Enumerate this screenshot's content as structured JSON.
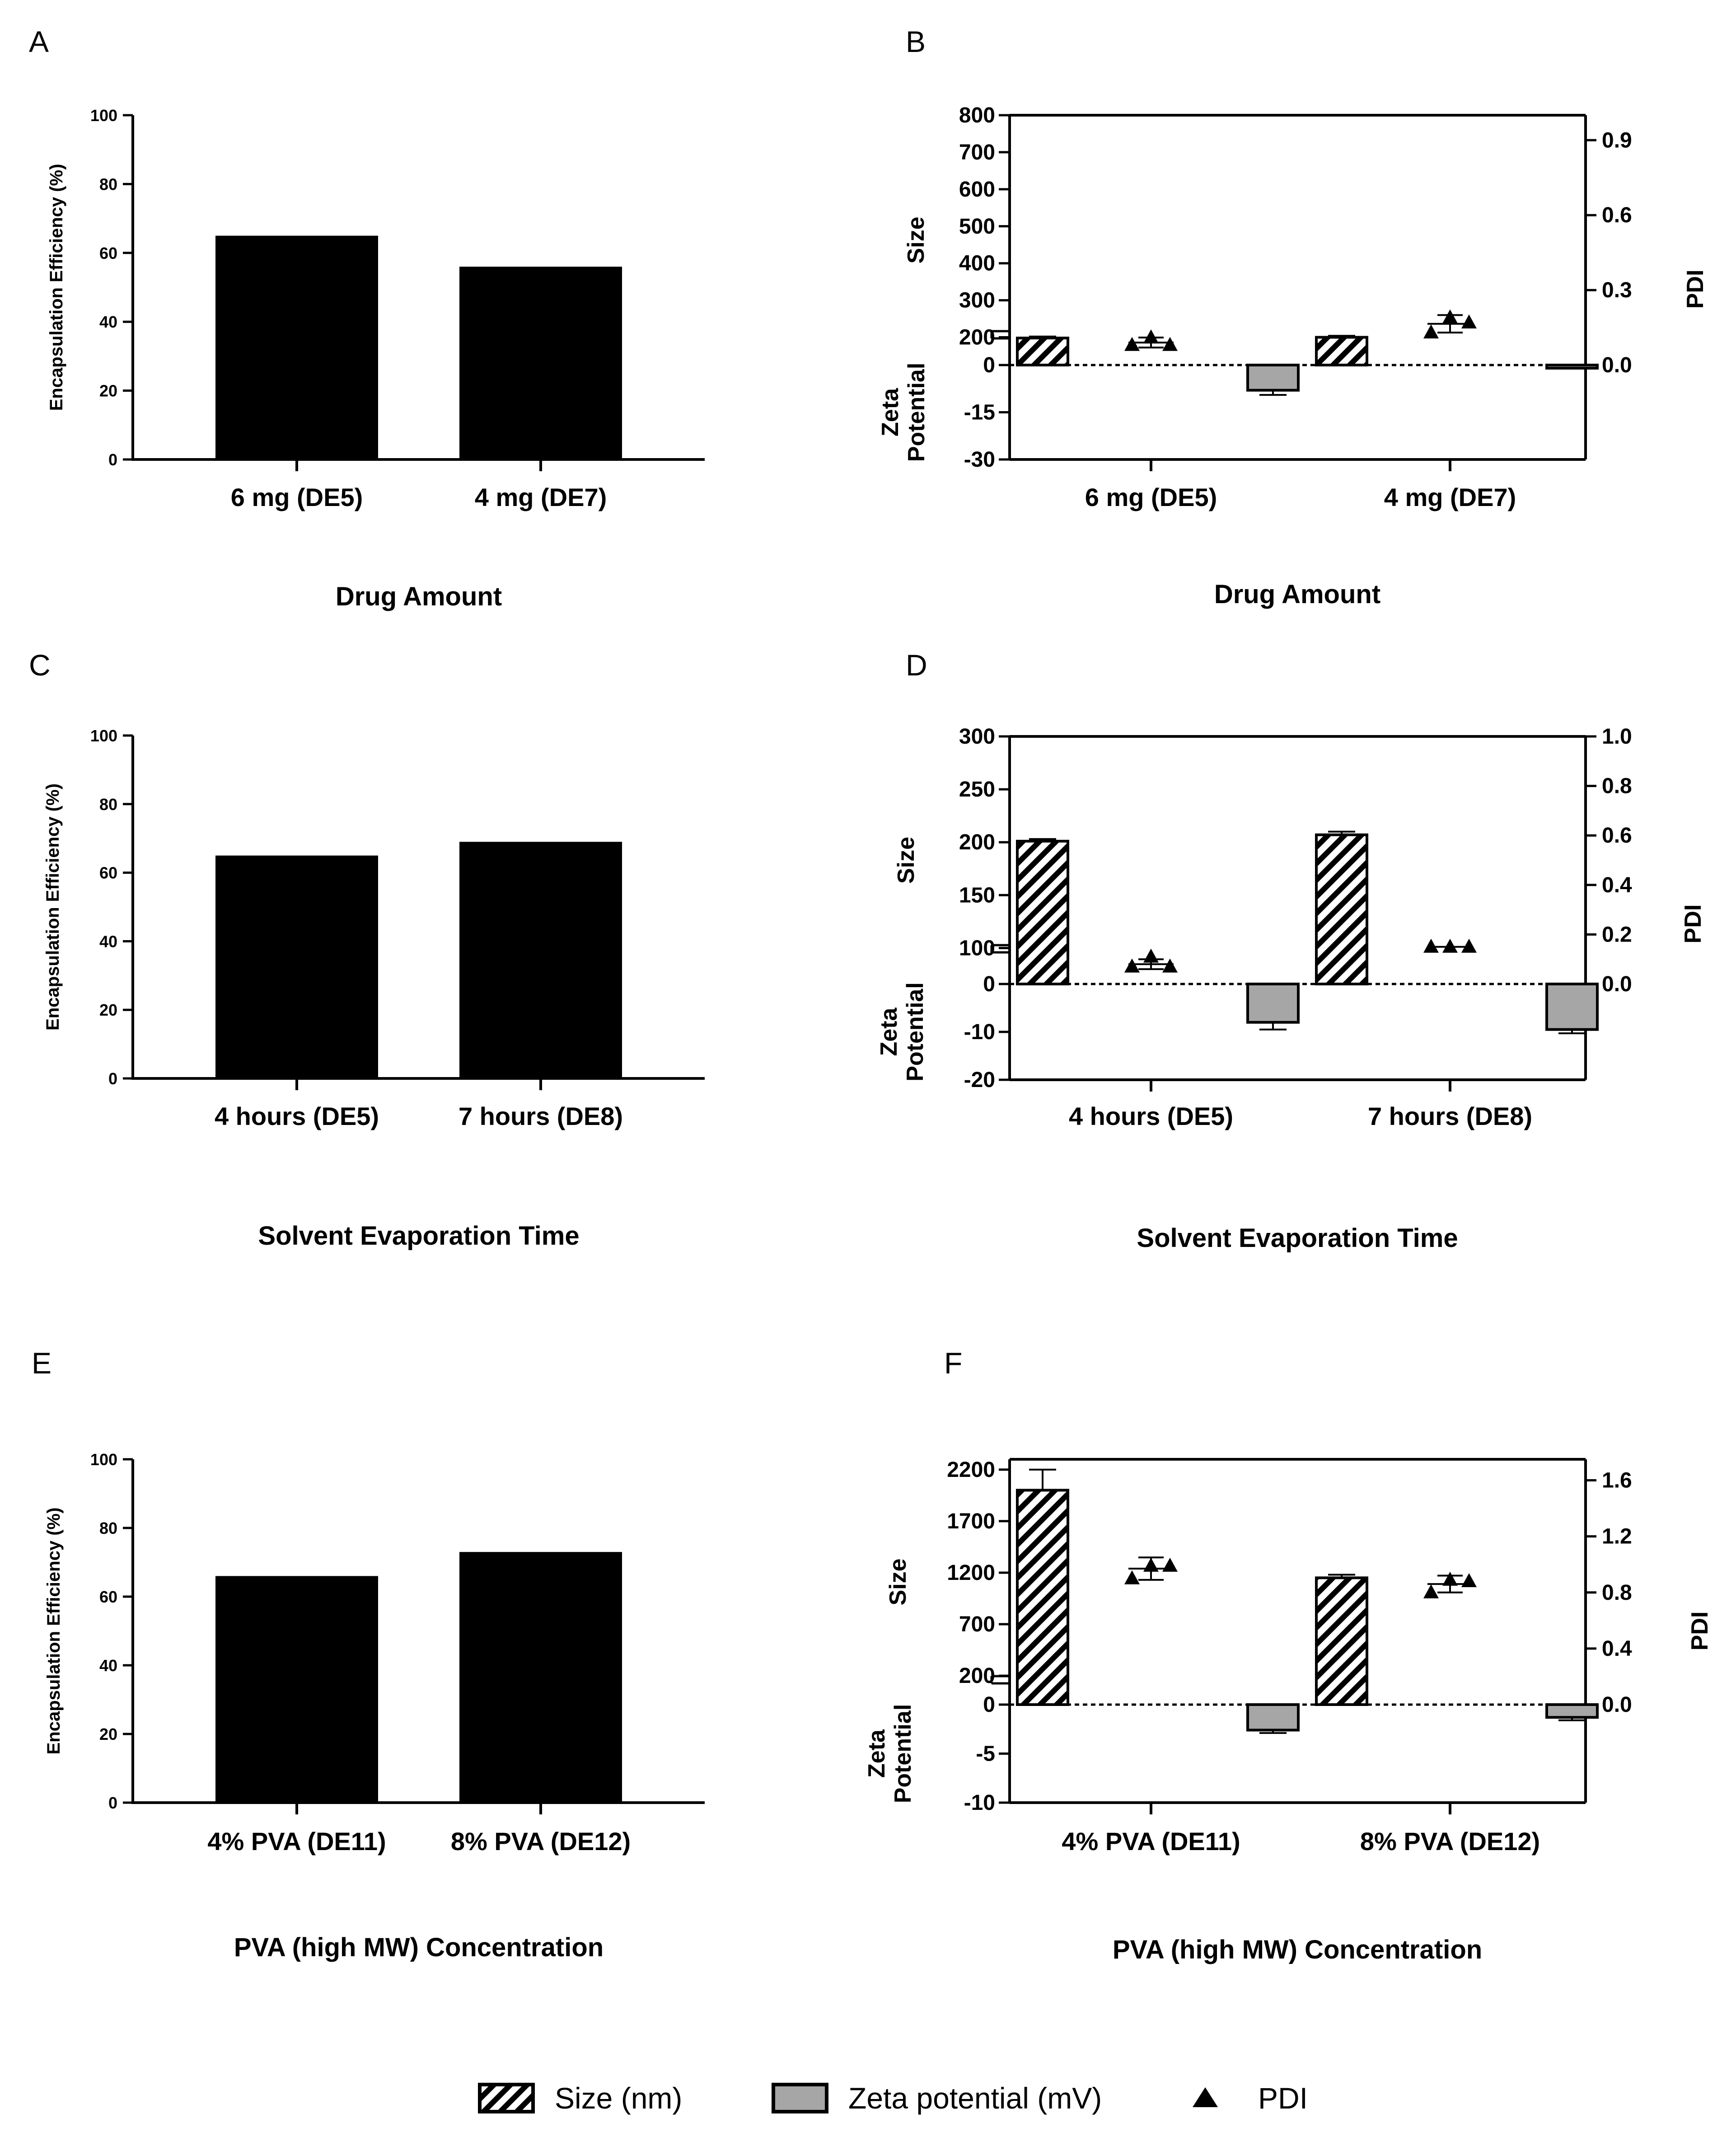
{
  "colors": {
    "bar": "#000000",
    "zeta": "#a6a6a6",
    "axis": "#000000",
    "background": "#ffffff"
  },
  "legend": {
    "size": "Size (nm)",
    "zeta": "Zeta potential (mV)",
    "pdi": "PDI",
    "size_icon": "hatched-bar-icon",
    "zeta_icon": "gray-bar-icon",
    "pdi_icon": "triangle-icon"
  },
  "chart_data": [
    {
      "panel": "A",
      "type": "bar",
      "categories": [
        "6 mg (DE5)",
        "4 mg (DE7)"
      ],
      "values": [
        65,
        56
      ],
      "ylabel": "Encapsulation Efficiency (%)",
      "xlabel": "Drug Amount",
      "ylim": [
        0,
        100
      ],
      "yticks": [
        0,
        20,
        40,
        60,
        80,
        100
      ]
    },
    {
      "panel": "B",
      "type": "bar",
      "categories": [
        "6 mg (DE5)",
        "4 mg (DE7)"
      ],
      "xlabel": "Drug Amount",
      "size_axis": {
        "label": "Size",
        "ticks": [
          200,
          300,
          400,
          500,
          600,
          700,
          800
        ],
        "lim": [
          125,
          800
        ]
      },
      "zeta_axis": {
        "label_line1": "Zeta",
        "label_line2": "Potential",
        "ticks": [
          0,
          -15,
          -30
        ],
        "lim": [
          -30,
          0
        ]
      },
      "pdi_axis": {
        "label": "PDI",
        "ticks": [
          "0.0",
          "0.3",
          "0.6",
          "0.9"
        ],
        "lim": [
          0,
          1.0
        ]
      },
      "series": [
        {
          "name": "Size (nm)",
          "values": [
            198,
            200
          ],
          "errors": [
            4,
            4
          ]
        },
        {
          "name": "Zeta potential (mV)",
          "values": [
            -8,
            -1
          ],
          "errors": [
            1.5,
            0
          ]
        },
        {
          "name": "PDI",
          "points": [
            [
              0.08,
              0.11,
              0.08
            ],
            [
              0.13,
              0.19,
              0.17
            ]
          ],
          "means": [
            0.09,
            0.165
          ],
          "errors": [
            0.02,
            0.035
          ]
        }
      ]
    },
    {
      "panel": "C",
      "type": "bar",
      "categories": [
        "4 hours (DE5)",
        "7 hours (DE8)"
      ],
      "values": [
        65,
        69
      ],
      "ylabel": "Encapsulation Efficiency (%)",
      "xlabel": "Solvent Evaporation Time",
      "ylim": [
        0,
        100
      ],
      "yticks": [
        0,
        20,
        40,
        60,
        80,
        100
      ]
    },
    {
      "panel": "D",
      "type": "bar",
      "categories": [
        "4 hours (DE5)",
        "7 hours (DE8)"
      ],
      "xlabel": "Solvent Evaporation Time",
      "size_axis": {
        "label": "Size",
        "ticks": [
          100,
          150,
          200,
          250,
          300
        ],
        "lim": [
          66,
          300
        ]
      },
      "zeta_axis": {
        "label_line1": "Zeta",
        "label_line2": "Potential",
        "ticks": [
          0,
          -10,
          -20
        ],
        "lim": [
          -20,
          0
        ]
      },
      "pdi_axis": {
        "label": "PDI",
        "ticks": [
          "0.0",
          "0.2",
          "0.4",
          "0.6",
          "0.8",
          "1.0"
        ],
        "lim": [
          0,
          1.0
        ]
      },
      "series": [
        {
          "name": "Size (nm)",
          "values": [
            201,
            207
          ],
          "errors": [
            2,
            3
          ]
        },
        {
          "name": "Zeta potential (mV)",
          "values": [
            -8,
            -9.5
          ],
          "errors": [
            1.5,
            0.8
          ]
        },
        {
          "name": "PDI",
          "points": [
            [
              0.07,
              0.11,
              0.07
            ],
            [
              0.15,
              0.15,
              0.15
            ]
          ],
          "means": [
            0.08,
            0.15
          ],
          "errors": [
            0.02,
            0
          ]
        }
      ]
    },
    {
      "panel": "E",
      "type": "bar",
      "categories": [
        "4% PVA (DE11)",
        "8% PVA (DE12)"
      ],
      "values": [
        66,
        73
      ],
      "ylabel": "Encapsulation Efficiency (%)",
      "xlabel": "PVA (high MW) Concentration",
      "ylim": [
        0,
        100
      ],
      "yticks": [
        0,
        20,
        40,
        60,
        80,
        100
      ]
    },
    {
      "panel": "F",
      "type": "bar",
      "categories": [
        "4% PVA (DE11)",
        "8% PVA (DE12)"
      ],
      "xlabel": "PVA (high MW) Concentration",
      "size_axis": {
        "label": "Size",
        "ticks": [
          200,
          700,
          1200,
          1700,
          2200
        ],
        "lim": [
          -80,
          2300
        ]
      },
      "zeta_axis": {
        "label_line1": "Zeta",
        "label_line2": "Potential",
        "ticks": [
          0,
          -5,
          -10
        ],
        "lim": [
          -10,
          0
        ]
      },
      "pdi_axis": {
        "label": "PDI",
        "ticks": [
          "0.0",
          "0.4",
          "0.8",
          "1.2",
          "1.6"
        ],
        "lim": [
          0,
          1.75
        ]
      },
      "series": [
        {
          "name": "Size (nm)",
          "values": [
            2000,
            1150
          ],
          "errors": [
            200,
            30
          ]
        },
        {
          "name": "Zeta potential (mV)",
          "values": [
            -2.6,
            -1.3
          ],
          "errors": [
            0.3,
            0.3
          ]
        },
        {
          "name": "PDI",
          "points": [
            [
              0.9,
              0.99,
              0.99
            ],
            [
              0.8,
              0.89,
              0.88
            ]
          ],
          "means": [
            0.97,
            0.86
          ],
          "errors": [
            0.08,
            0.06
          ]
        }
      ]
    }
  ]
}
